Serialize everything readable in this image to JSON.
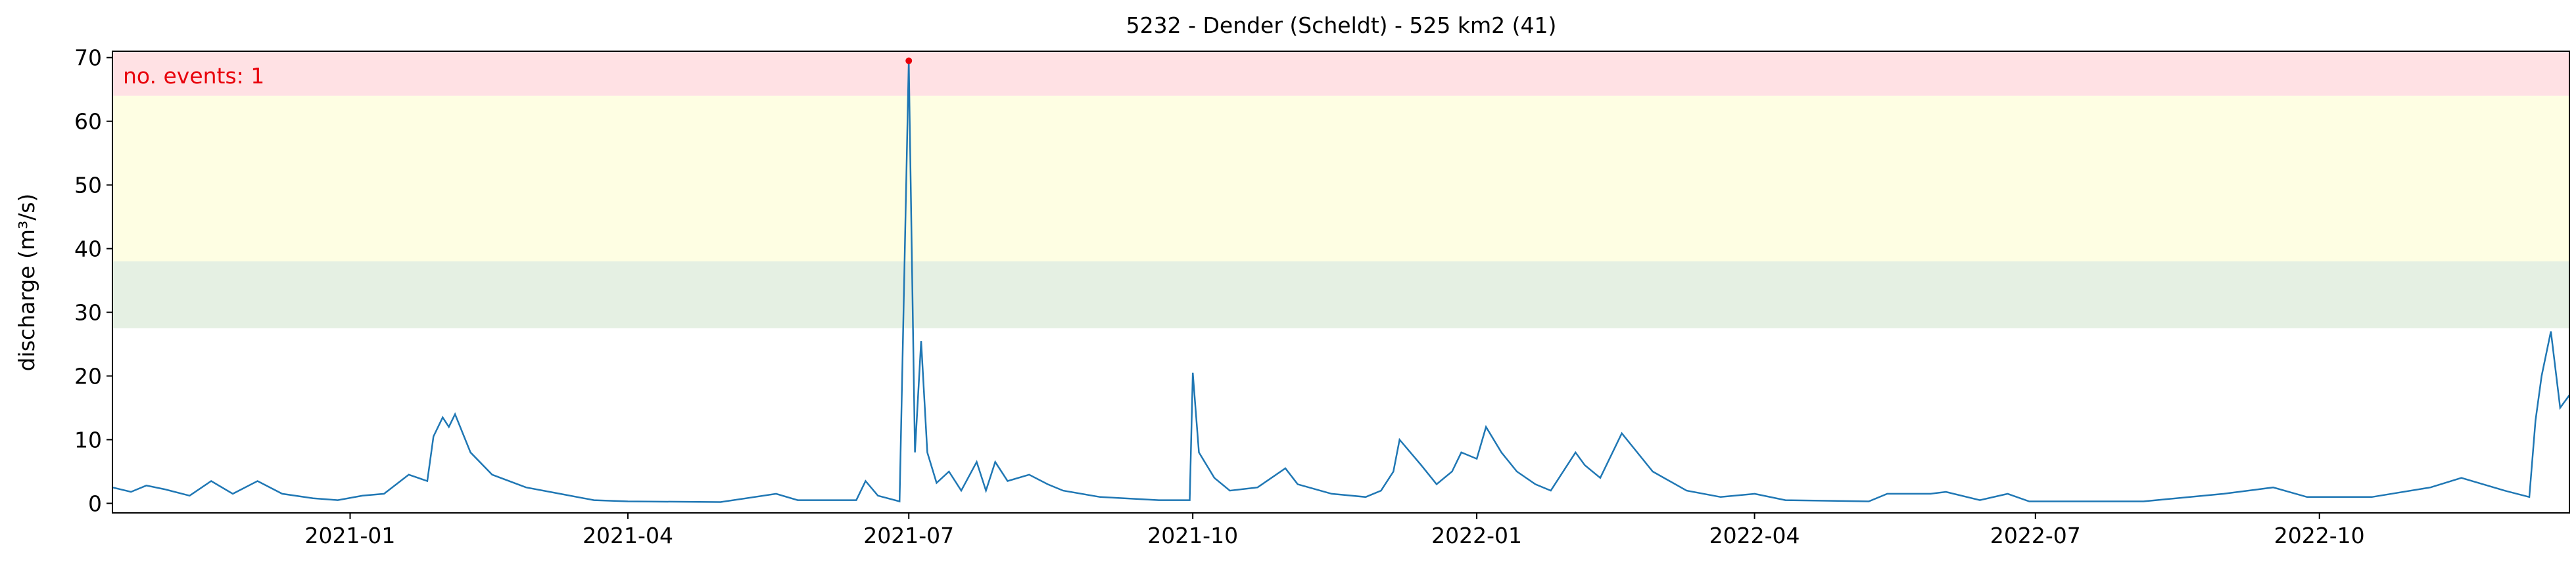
{
  "chart_data": {
    "type": "line",
    "title": "5232 - Dender (Scheldt) - 525 km2 (41)",
    "y_label": "discharge (m³/s)",
    "annotation": "no. events: 1",
    "bands": [
      {
        "from": 64,
        "to": 71,
        "color": "#ffe1e4"
      },
      {
        "from": 38,
        "to": 64,
        "color": "#fefee3"
      },
      {
        "from": 27.5,
        "to": 38,
        "color": "#e5f0e3"
      }
    ],
    "events": {
      "x": [
        "2021-07-01"
      ],
      "values": [
        69.5
      ],
      "color": "#e8000b"
    },
    "xlim": [
      "2020-10-16",
      "2022-12-21"
    ],
    "xticks": [
      {
        "value": "2021-01-01",
        "label": "2021-01"
      },
      {
        "value": "2021-04-01",
        "label": "2021-04"
      },
      {
        "value": "2021-07-01",
        "label": "2021-07"
      },
      {
        "value": "2021-10-01",
        "label": "2021-10"
      },
      {
        "value": "2022-01-01",
        "label": "2022-01"
      },
      {
        "value": "2022-04-01",
        "label": "2022-04"
      },
      {
        "value": "2022-07-01",
        "label": "2022-07"
      },
      {
        "value": "2022-10-01",
        "label": "2022-10"
      }
    ],
    "ylim": [
      -1.5,
      71
    ],
    "yticks": [
      0,
      10,
      20,
      30,
      40,
      50,
      60,
      70
    ],
    "x": [
      "2020-10-16",
      "2020-10-22",
      "2020-10-27",
      "2020-11-02",
      "2020-11-10",
      "2020-11-17",
      "2020-11-24",
      "2020-12-02",
      "2020-12-10",
      "2020-12-20",
      "2020-12-28",
      "2021-01-05",
      "2021-01-12",
      "2021-01-20",
      "2021-01-26",
      "2021-01-28",
      "2021-01-31",
      "2021-02-02",
      "2021-02-04",
      "2021-02-09",
      "2021-02-16",
      "2021-02-27",
      "2021-03-10",
      "2021-03-21",
      "2021-04-01",
      "2021-05-01",
      "2021-05-19",
      "2021-05-26",
      "2021-06-14",
      "2021-06-17",
      "2021-06-21",
      "2021-06-28",
      "2021-07-01",
      "2021-07-03",
      "2021-07-05",
      "2021-07-07",
      "2021-07-10",
      "2021-07-14",
      "2021-07-18",
      "2021-07-23",
      "2021-07-26",
      "2021-07-29",
      "2021-08-02",
      "2021-08-09",
      "2021-08-15",
      "2021-08-20",
      "2021-09-01",
      "2021-09-20",
      "2021-09-30",
      "2021-10-01",
      "2021-10-03",
      "2021-10-08",
      "2021-10-13",
      "2021-10-22",
      "2021-10-31",
      "2021-11-04",
      "2021-11-15",
      "2021-11-26",
      "2021-12-01",
      "2021-12-05",
      "2021-12-07",
      "2021-12-14",
      "2021-12-19",
      "2021-12-24",
      "2021-12-27",
      "2022-01-01",
      "2022-01-04",
      "2022-01-09",
      "2022-01-14",
      "2022-01-20",
      "2022-01-25",
      "2022-02-02",
      "2022-02-05",
      "2022-02-10",
      "2022-02-17",
      "2022-02-22",
      "2022-02-27",
      "2022-03-10",
      "2022-03-21",
      "2022-04-01",
      "2022-04-11",
      "2022-05-08",
      "2022-05-14",
      "2022-05-28",
      "2022-06-02",
      "2022-06-13",
      "2022-06-22",
      "2022-06-29",
      "2022-08-05",
      "2022-08-31",
      "2022-09-16",
      "2022-09-27",
      "2022-10-18",
      "2022-11-06",
      "2022-11-16",
      "2022-11-30",
      "2022-12-08",
      "2022-12-10",
      "2022-12-12",
      "2022-12-15",
      "2022-12-18",
      "2022-12-21"
    ],
    "series": [
      {
        "name": "discharge",
        "color": "#1f77b4",
        "values": [
          2.5,
          1.8,
          2.8,
          2.2,
          1.2,
          3.5,
          1.5,
          3.5,
          1.5,
          0.8,
          0.5,
          1.2,
          1.5,
          4.5,
          3.5,
          10.5,
          13.5,
          12,
          14,
          8,
          4.5,
          2.5,
          1.5,
          0.5,
          0.3,
          0.2,
          1.5,
          0.5,
          0.5,
          3.5,
          1.2,
          0.3,
          69.5,
          8,
          25.5,
          8,
          3.2,
          5,
          2,
          6.5,
          2,
          6.5,
          3.5,
          4.5,
          3,
          2,
          1,
          0.5,
          0.5,
          20.5,
          8,
          4,
          2,
          2.5,
          5.5,
          3,
          1.5,
          1,
          2,
          5,
          10,
          6,
          3,
          5,
          8,
          7,
          12,
          8,
          5,
          3,
          2,
          8,
          6,
          4,
          11,
          8,
          5,
          2,
          1,
          1.5,
          0.5,
          0.3,
          1.5,
          1.5,
          1.8,
          0.5,
          1.5,
          0.3,
          0.3,
          1.5,
          2.5,
          1,
          1,
          2.5,
          4,
          2,
          1,
          13,
          20,
          27,
          15,
          17
        ]
      }
    ]
  }
}
